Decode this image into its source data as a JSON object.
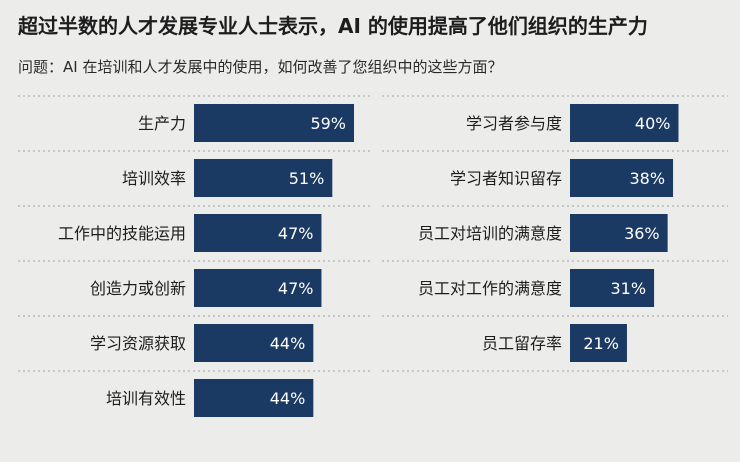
{
  "title": "超过半数的人才发展专业人士表示，AI 的使用提高了他们组织的生产力",
  "subtitle": "问题：AI 在培训和人才发展中的使用，如何改善了您组织中的这些方面？",
  "colors": {
    "bar": "#1b3a63",
    "background": "#ececeb",
    "divider": "#b9b9b9"
  },
  "chart_data": [
    {
      "type": "bar",
      "orientation": "horizontal",
      "categories": [
        "生产力",
        "培训效率",
        "工作中的技能运用",
        "创造力或创新",
        "学习资源获取",
        "培训有效性"
      ],
      "values": [
        59,
        51,
        47,
        47,
        44,
        44
      ],
      "value_labels": [
        "59%",
        "51%",
        "47%",
        "47%",
        "44%",
        "44%"
      ],
      "unit": "%",
      "xlim": [
        0,
        59
      ]
    },
    {
      "type": "bar",
      "orientation": "horizontal",
      "categories": [
        "学习者参与度",
        "学习者知识留存",
        "员工对培训的满意度",
        "员工对工作的满意度",
        "员工留存率"
      ],
      "values": [
        40,
        38,
        36,
        31,
        21
      ],
      "value_labels": [
        "40%",
        "38%",
        "36%",
        "31%",
        "21%"
      ],
      "unit": "%",
      "xlim": [
        0,
        59
      ]
    }
  ]
}
